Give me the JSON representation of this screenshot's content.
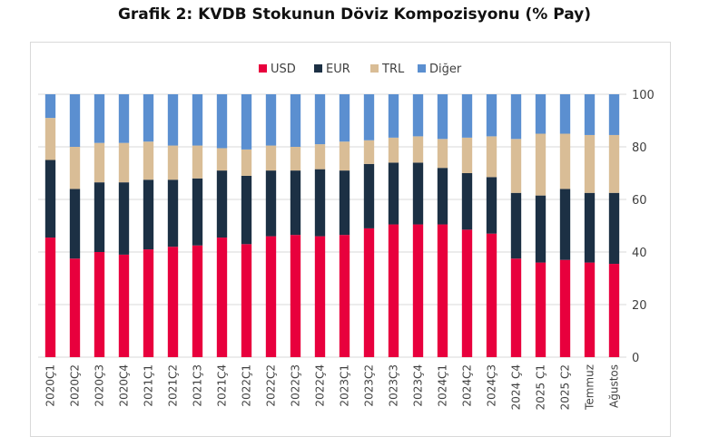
{
  "title": "Grafik 2: KVDB Stokunun Döviz Kompozisyonu (% Pay)",
  "colors": {
    "USD": "#e8003d",
    "EUR": "#1c3044",
    "TRL": "#d9bd96",
    "Diğer": "#5b8fd0"
  },
  "chart_data": {
    "type": "bar",
    "stacked": true,
    "categories": [
      "2020Ç1",
      "2020Ç2",
      "2020Ç3",
      "2020Ç4",
      "2021Ç1",
      "2021Ç2",
      "2021Ç3",
      "2021Ç4",
      "2022Ç1",
      "2022Ç2",
      "2022Ç3",
      "2022Ç4",
      "2023Ç1",
      "2023Ç2",
      "2023Ç3",
      "2023Ç4",
      "2024Ç1",
      "2024Ç2",
      "2024Ç3",
      "2024 Ç4",
      "2025 Ç1",
      "2025 Ç2",
      "Temmuz",
      "Ağustos"
    ],
    "series": [
      {
        "name": "USD",
        "values": [
          45.5,
          37.5,
          40,
          39,
          41,
          42,
          42.5,
          45.5,
          43,
          46,
          46.5,
          46,
          46.5,
          49,
          50.5,
          50.5,
          50.5,
          48.5,
          47,
          37.5,
          36,
          37,
          36,
          35.5
        ]
      },
      {
        "name": "EUR",
        "values": [
          29.5,
          26.5,
          26.5,
          27.5,
          26.5,
          25.5,
          25.5,
          25.5,
          26,
          25,
          24.5,
          25.5,
          24.5,
          24.5,
          23.5,
          23.5,
          21.5,
          21.5,
          21.5,
          25,
          25.5,
          27,
          26.5,
          27
        ]
      },
      {
        "name": "TRL",
        "values": [
          16,
          16,
          15,
          15,
          14.5,
          13,
          12.5,
          8.5,
          10,
          9.5,
          9,
          9.5,
          11,
          9,
          9.5,
          10,
          11,
          13.5,
          15.5,
          20.5,
          23.5,
          21,
          22,
          22
        ]
      },
      {
        "name": "Diğer",
        "values": [
          9,
          20,
          18.5,
          18.5,
          18,
          19.5,
          19.5,
          20.5,
          21,
          19.5,
          20,
          19,
          18,
          17.5,
          16.5,
          16,
          17,
          16.5,
          16,
          17,
          15,
          15,
          15.5,
          15.5
        ]
      }
    ],
    "ylim": [
      0,
      100
    ],
    "yticks": [
      "0",
      "20",
      "40",
      "60",
      "80",
      "100"
    ],
    "y_axis_side": "right",
    "legend": [
      "USD",
      "EUR",
      "TRL",
      "Diğer"
    ],
    "legend_position": "top",
    "grid": "horizontal"
  }
}
